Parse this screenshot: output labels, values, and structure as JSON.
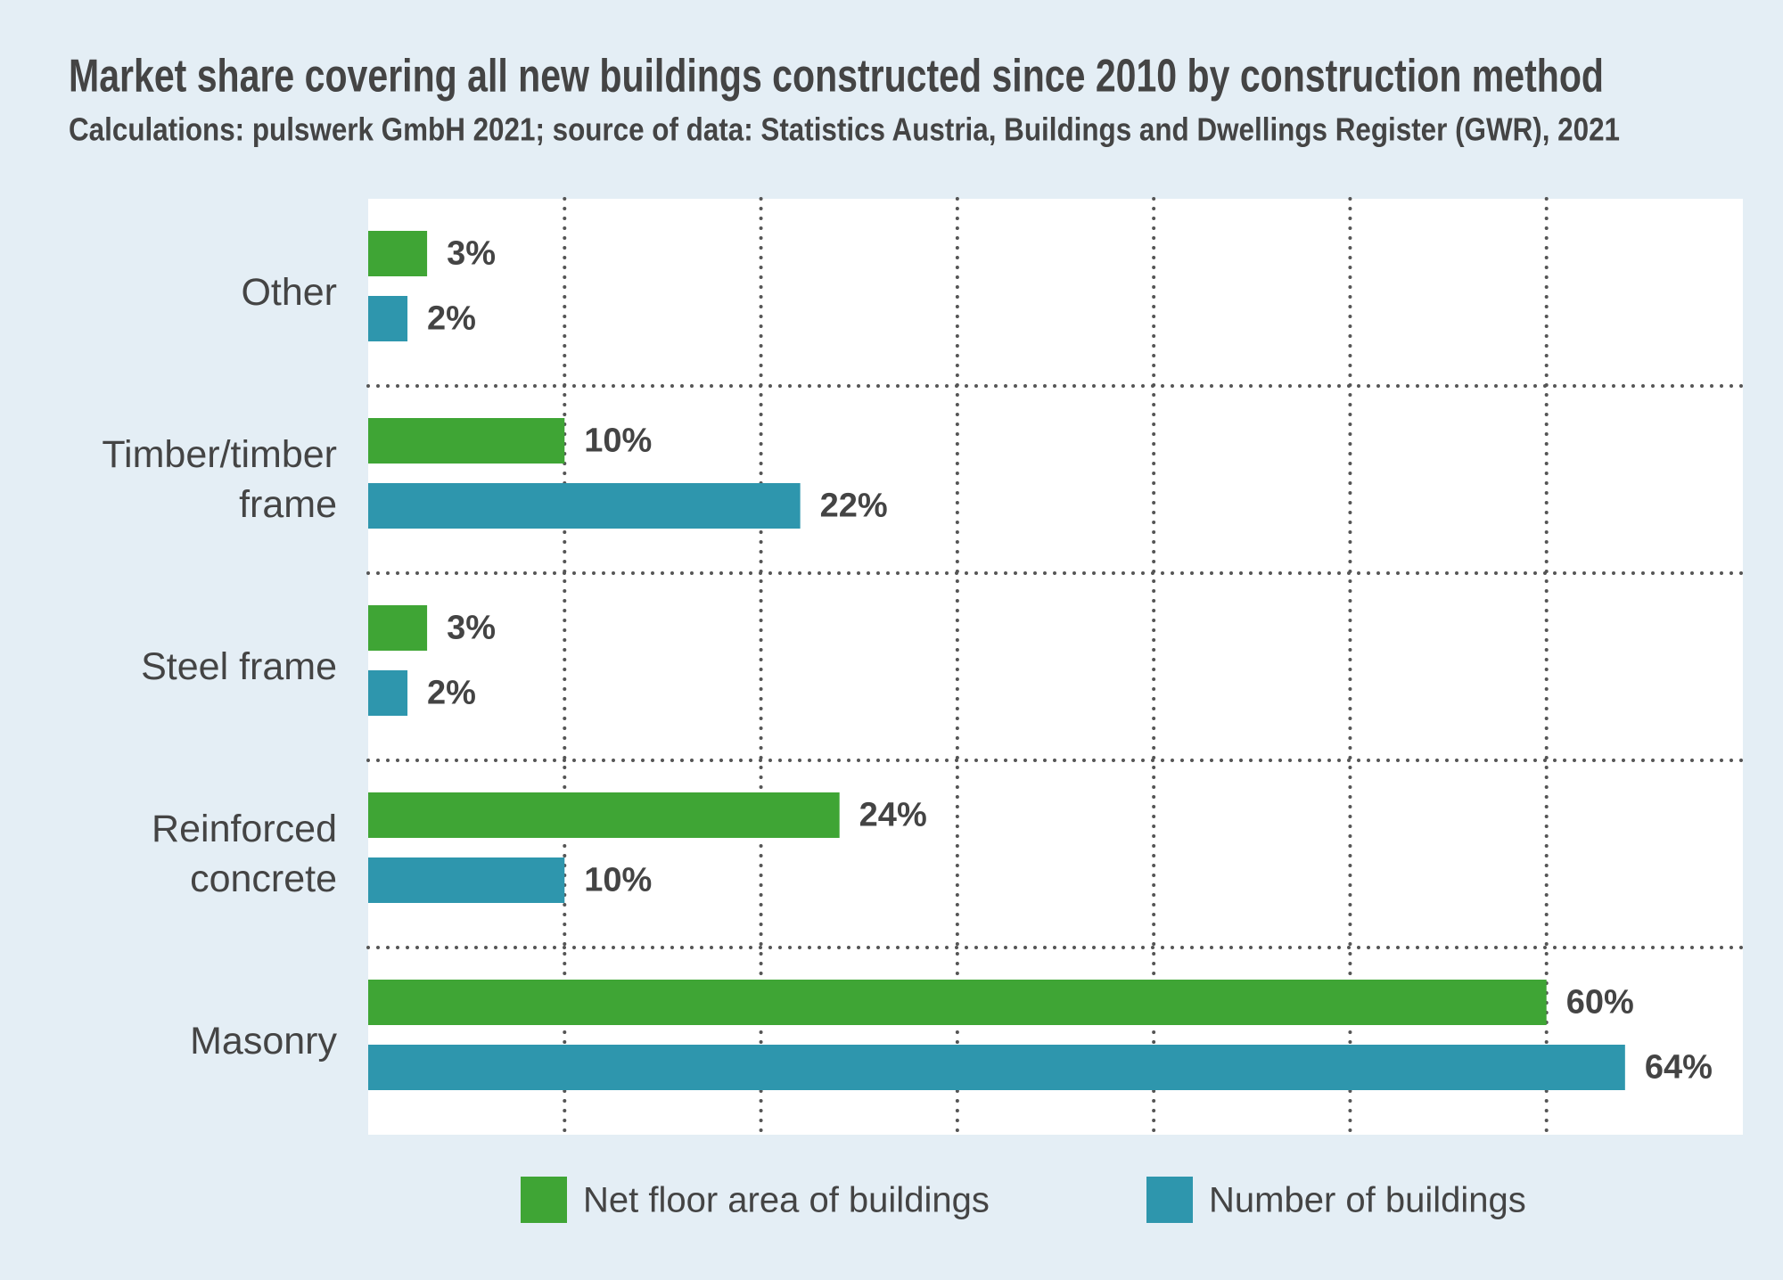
{
  "chart_data": {
    "type": "hbar",
    "title": "Market share covering all new buildings constructed since 2010 by construction method",
    "subtitle": "Calculations: pulswerk GmbH 2021; source of data: Statistics Austria, Buildings and Dwellings Register (GWR), 2021",
    "categories": [
      "Other",
      "Timber/timber frame",
      "Steel frame",
      "Reinforced concrete",
      "Masonry"
    ],
    "series": [
      {
        "name": "Net floor area of buildings",
        "color": "#3fa535",
        "values": [
          3,
          10,
          3,
          24,
          60
        ],
        "value_labels": [
          "3%",
          "10%",
          "3%",
          "24%",
          "60%"
        ]
      },
      {
        "name": "Number of buildings",
        "color": "#2e96ad",
        "values": [
          2,
          22,
          2,
          10,
          64
        ],
        "value_labels": [
          "2%",
          "22%",
          "2%",
          "10%",
          "64%"
        ]
      }
    ],
    "xlim": [
      0,
      70
    ],
    "xticks": [
      10,
      20,
      30,
      40,
      50,
      60
    ],
    "grid": true,
    "legend": "bottom"
  }
}
